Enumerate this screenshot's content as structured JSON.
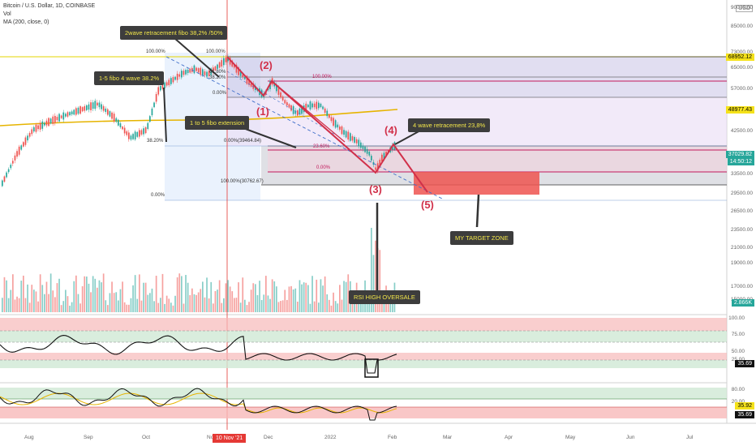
{
  "header": {
    "symbol_line": "Bitcoin / U.S. Dollar, 1D, COINBASE",
    "volume_label": "Vol",
    "ma_label": "MA (200, close, 0)",
    "currency_button": "USD"
  },
  "annotations": {
    "wave2_retrace": "2wave retracement fibo 38,2% /50%",
    "fibo_1_5_wave4": "1-5 fibo 4 wave 38.2%",
    "fibo_1_to_5_ext": "1 to 5 fibo extension",
    "wave4_retrace": "4 wave retracement 23,8%",
    "target_zone": "MY TARGET ZONE",
    "rsi_oversale": "RSI HIGH OVERSALE"
  },
  "waves": {
    "w1": "(1)",
    "w2": "(2)",
    "w3": "(3)",
    "w4": "(4)",
    "w5": "(5)"
  },
  "fib_labels": {
    "left_100": "100.00%",
    "left_382": "38.20%",
    "left_0": "0.00%",
    "mid_100": "100.00%",
    "mid_618": "61.80%",
    "mid_382": "38.20%",
    "mid_0": "0.00%",
    "red_100": "100.00%",
    "red_236": "23.60%",
    "red_0": "0.00%",
    "ext_0": "0.00%(39464.84)",
    "ext_100": "100.00%(30762.67)"
  },
  "price_axis": {
    "ticks": [
      "90000.00",
      "85000.00",
      "73000.00",
      "65000.00",
      "57000.00",
      "42500.00",
      "33500.00",
      "29500.00",
      "26500.00",
      "23500.00",
      "21000.00",
      "19000.00",
      "17000.00",
      "15000.00"
    ],
    "boxes": [
      {
        "text": "68952.12",
        "bg": "#f5e21b",
        "fg": "#000000"
      },
      {
        "text": "48977.43",
        "bg": "#f5e21b",
        "fg": "#000000"
      },
      {
        "text": "37029.82",
        "bg": "#26a69a",
        "fg": "#ffffff"
      },
      {
        "text": "14:50:12",
        "bg": "#26a69a",
        "fg": "#ffffff"
      },
      {
        "text": "2.866K",
        "bg": "#26a69a",
        "fg": "#ffffff"
      }
    ]
  },
  "rsi_axis": {
    "ticks": [
      "100.00",
      "75.00",
      "50.00",
      "25.00"
    ],
    "value": "35.69"
  },
  "stoch_axis": {
    "ticks": [
      "80.00",
      "20.00"
    ],
    "value_k": "35.92",
    "value_d": "35.69"
  },
  "time_axis": {
    "labels": [
      "Aug",
      "Sep",
      "Oct",
      "Nov",
      "Dec",
      "2022",
      "Feb",
      "Mar",
      "Apr",
      "May",
      "Jun",
      "Jul"
    ],
    "highlight": "10 Nov '21"
  },
  "colors": {
    "bull": "#26a69a",
    "bear": "#ef5350",
    "ma": "#e6b400",
    "accent": "#d1304a"
  }
}
